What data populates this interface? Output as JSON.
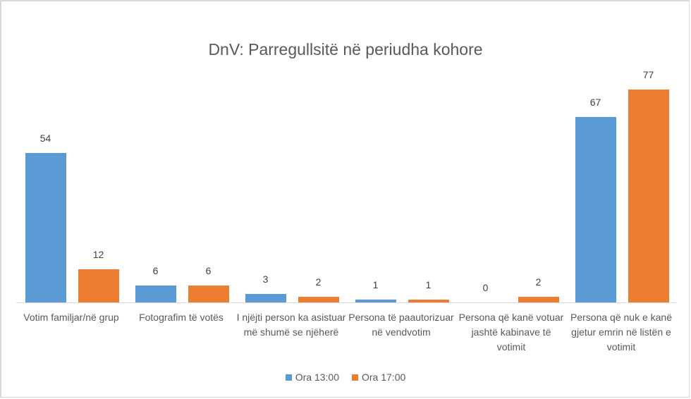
{
  "chart_data": {
    "type": "bar",
    "title": "DnV: Parregullsitë në periudha kohore",
    "xlabel": "",
    "ylabel": "",
    "grid": false,
    "legend_position": "bottom",
    "data_labels": true,
    "categories": [
      "Votim familjar/në grup",
      "Fotografim të votës",
      "I njëjti person ka asistuar më shumë se njëherë",
      "Persona të paautorizuar në vendvotim",
      "Persona që kanë votuar jashtë kabinave të votimit",
      "Persona që nuk e kanë gjetur emrin në listën e votimit"
    ],
    "series": [
      {
        "name": "Ora 13:00",
        "color": "#5b9bd5",
        "values": [
          54,
          6,
          3,
          1,
          0,
          67
        ]
      },
      {
        "name": "Ora 17:00",
        "color": "#ed7d31",
        "values": [
          12,
          6,
          2,
          1,
          2,
          77
        ]
      }
    ]
  },
  "legend": {
    "items": [
      {
        "label": "Ora 13:00",
        "color": "#5b9bd5"
      },
      {
        "label": "Ora 17:00",
        "color": "#ed7d31"
      }
    ]
  }
}
